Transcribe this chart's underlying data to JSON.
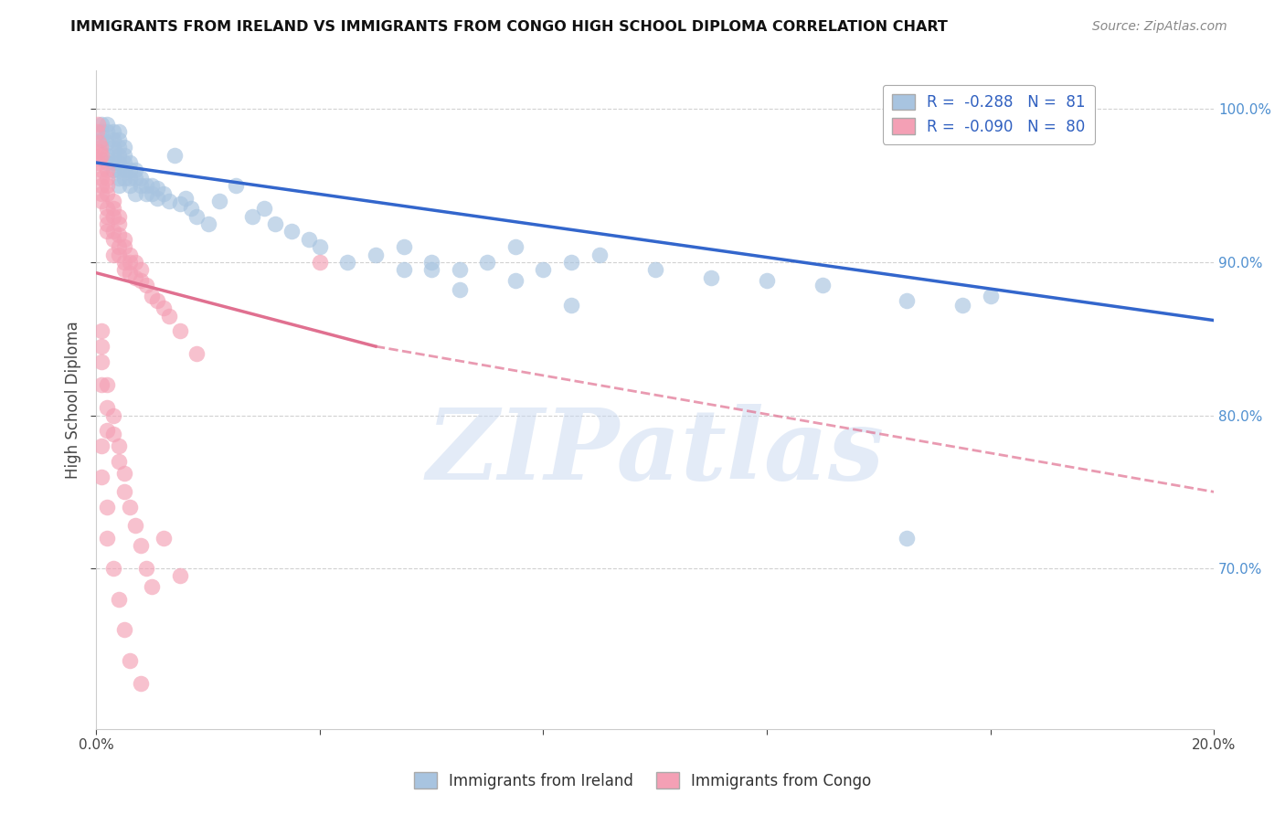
{
  "title": "IMMIGRANTS FROM IRELAND VS IMMIGRANTS FROM CONGO HIGH SCHOOL DIPLOMA CORRELATION CHART",
  "source": "Source: ZipAtlas.com",
  "ylabel": "High School Diploma",
  "xlim": [
    0.0,
    0.2
  ],
  "ylim": [
    0.595,
    1.025
  ],
  "ireland_R": -0.288,
  "ireland_N": 81,
  "congo_R": -0.09,
  "congo_N": 80,
  "ireland_color": "#a8c4e0",
  "congo_color": "#f4a0b5",
  "ireland_line_color": "#3366cc",
  "congo_line_color": "#e07090",
  "legend_label_ireland": "Immigrants from Ireland",
  "legend_label_congo": "Immigrants from Congo",
  "watermark": "ZIPatlas",
  "background_color": "#ffffff",
  "grid_color": "#cccccc",
  "ireland_x": [
    0.001,
    0.001,
    0.001,
    0.002,
    0.002,
    0.002,
    0.002,
    0.002,
    0.003,
    0.003,
    0.003,
    0.003,
    0.003,
    0.003,
    0.004,
    0.004,
    0.004,
    0.004,
    0.004,
    0.004,
    0.004,
    0.004,
    0.005,
    0.005,
    0.005,
    0.005,
    0.005,
    0.006,
    0.006,
    0.006,
    0.006,
    0.007,
    0.007,
    0.007,
    0.008,
    0.008,
    0.009,
    0.009,
    0.01,
    0.01,
    0.011,
    0.011,
    0.012,
    0.013,
    0.014,
    0.015,
    0.016,
    0.017,
    0.018,
    0.02,
    0.022,
    0.025,
    0.028,
    0.03,
    0.032,
    0.035,
    0.038,
    0.04,
    0.045,
    0.05,
    0.055,
    0.06,
    0.065,
    0.07,
    0.075,
    0.08,
    0.085,
    0.09,
    0.1,
    0.11,
    0.12,
    0.13,
    0.145,
    0.155,
    0.16,
    0.055,
    0.06,
    0.065,
    0.075,
    0.085,
    0.145
  ],
  "ireland_y": [
    0.99,
    0.985,
    0.98,
    0.99,
    0.985,
    0.978,
    0.97,
    0.965,
    0.985,
    0.98,
    0.975,
    0.97,
    0.965,
    0.96,
    0.985,
    0.98,
    0.975,
    0.97,
    0.965,
    0.96,
    0.955,
    0.95,
    0.975,
    0.97,
    0.965,
    0.96,
    0.955,
    0.965,
    0.96,
    0.955,
    0.95,
    0.96,
    0.955,
    0.945,
    0.955,
    0.95,
    0.95,
    0.945,
    0.95,
    0.945,
    0.948,
    0.942,
    0.945,
    0.94,
    0.97,
    0.938,
    0.942,
    0.935,
    0.93,
    0.925,
    0.94,
    0.95,
    0.93,
    0.935,
    0.925,
    0.92,
    0.915,
    0.91,
    0.9,
    0.905,
    0.895,
    0.9,
    0.895,
    0.9,
    0.91,
    0.895,
    0.9,
    0.905,
    0.895,
    0.89,
    0.888,
    0.885,
    0.875,
    0.872,
    0.878,
    0.91,
    0.895,
    0.882,
    0.888,
    0.872,
    0.72
  ],
  "congo_x": [
    0.0002,
    0.0003,
    0.0004,
    0.0005,
    0.0006,
    0.0007,
    0.0008,
    0.001,
    0.001,
    0.001,
    0.001,
    0.001,
    0.001,
    0.002,
    0.002,
    0.002,
    0.002,
    0.002,
    0.002,
    0.002,
    0.002,
    0.003,
    0.003,
    0.003,
    0.003,
    0.003,
    0.003,
    0.004,
    0.004,
    0.004,
    0.004,
    0.004,
    0.005,
    0.005,
    0.005,
    0.005,
    0.006,
    0.006,
    0.006,
    0.007,
    0.007,
    0.008,
    0.008,
    0.009,
    0.01,
    0.011,
    0.012,
    0.013,
    0.015,
    0.018,
    0.001,
    0.001,
    0.001,
    0.001,
    0.002,
    0.002,
    0.002,
    0.003,
    0.003,
    0.004,
    0.004,
    0.005,
    0.005,
    0.006,
    0.007,
    0.008,
    0.009,
    0.01,
    0.012,
    0.015,
    0.001,
    0.001,
    0.002,
    0.002,
    0.003,
    0.004,
    0.005,
    0.006,
    0.008,
    0.04
  ],
  "congo_y": [
    0.985,
    0.99,
    0.978,
    0.965,
    0.972,
    0.968,
    0.975,
    0.97,
    0.96,
    0.955,
    0.95,
    0.945,
    0.94,
    0.96,
    0.955,
    0.95,
    0.945,
    0.935,
    0.93,
    0.925,
    0.92,
    0.94,
    0.935,
    0.93,
    0.92,
    0.915,
    0.905,
    0.93,
    0.925,
    0.918,
    0.91,
    0.905,
    0.915,
    0.91,
    0.9,
    0.895,
    0.905,
    0.9,
    0.893,
    0.9,
    0.89,
    0.895,
    0.888,
    0.885,
    0.878,
    0.875,
    0.87,
    0.865,
    0.855,
    0.84,
    0.855,
    0.845,
    0.835,
    0.82,
    0.82,
    0.805,
    0.79,
    0.8,
    0.788,
    0.78,
    0.77,
    0.762,
    0.75,
    0.74,
    0.728,
    0.715,
    0.7,
    0.688,
    0.72,
    0.695,
    0.78,
    0.76,
    0.74,
    0.72,
    0.7,
    0.68,
    0.66,
    0.64,
    0.625,
    0.9
  ],
  "ireland_trend_x0": 0.0,
  "ireland_trend_y0": 0.965,
  "ireland_trend_x1": 0.2,
  "ireland_trend_y1": 0.862,
  "congo_trend_solid_x0": 0.0,
  "congo_trend_solid_y0": 0.893,
  "congo_trend_solid_x1": 0.05,
  "congo_trend_solid_y1": 0.845,
  "congo_trend_dash_x0": 0.05,
  "congo_trend_dash_y0": 0.845,
  "congo_trend_dash_x1": 0.2,
  "congo_trend_dash_y1": 0.75
}
